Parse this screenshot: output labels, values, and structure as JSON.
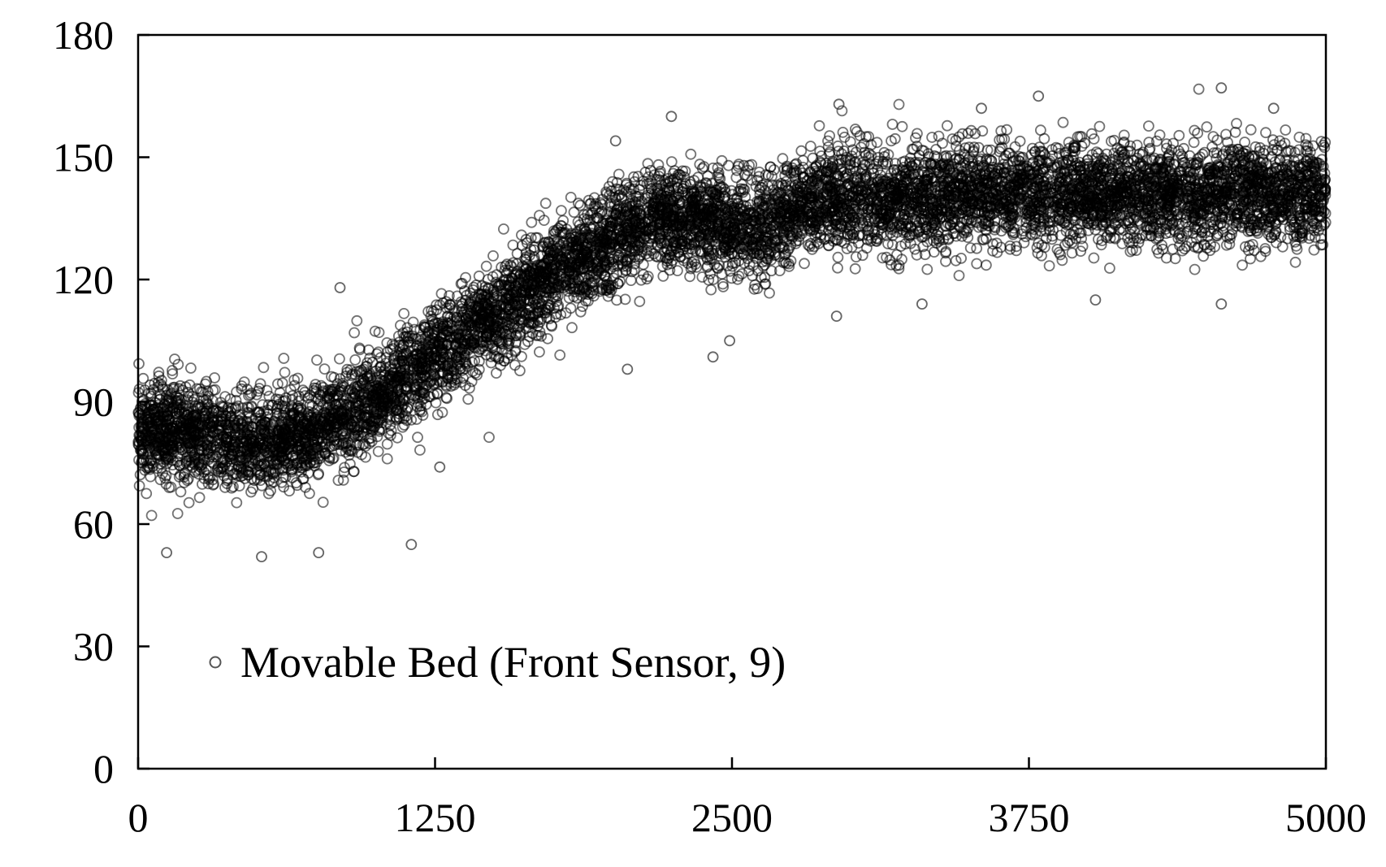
{
  "chart_data": {
    "type": "scatter",
    "title": "",
    "xlabel": "",
    "ylabel": "",
    "xlim": [
      0,
      5000
    ],
    "ylim": [
      0,
      180
    ],
    "x_ticks": [
      "0",
      "1250",
      "2500",
      "3750",
      "5000"
    ],
    "y_ticks": [
      "0",
      "30",
      "60",
      "90",
      "120",
      "150",
      "180"
    ],
    "grid": false,
    "legend_position": "bottom-left",
    "marker": "open-circle",
    "marker_color": "#000000",
    "series": [
      {
        "name": "Movable Bed (Front Sensor, 9)",
        "trend": [
          {
            "x": 0,
            "y": 83
          },
          {
            "x": 100,
            "y": 83
          },
          {
            "x": 250,
            "y": 82
          },
          {
            "x": 400,
            "y": 80
          },
          {
            "x": 550,
            "y": 80
          },
          {
            "x": 700,
            "y": 82
          },
          {
            "x": 850,
            "y": 86
          },
          {
            "x": 1000,
            "y": 91
          },
          {
            "x": 1150,
            "y": 97
          },
          {
            "x": 1300,
            "y": 103
          },
          {
            "x": 1450,
            "y": 109
          },
          {
            "x": 1600,
            "y": 115
          },
          {
            "x": 1750,
            "y": 121
          },
          {
            "x": 1900,
            "y": 126
          },
          {
            "x": 2050,
            "y": 131
          },
          {
            "x": 2200,
            "y": 135
          },
          {
            "x": 2350,
            "y": 135
          },
          {
            "x": 2500,
            "y": 133
          },
          {
            "x": 2650,
            "y": 133
          },
          {
            "x": 2800,
            "y": 138
          },
          {
            "x": 2950,
            "y": 140
          },
          {
            "x": 3100,
            "y": 140
          },
          {
            "x": 3500,
            "y": 141
          },
          {
            "x": 4000,
            "y": 141
          },
          {
            "x": 4500,
            "y": 141
          },
          {
            "x": 5000,
            "y": 141
          }
        ],
        "spread_sd": 6,
        "outliers": [
          {
            "x": 120,
            "y": 53
          },
          {
            "x": 520,
            "y": 52
          },
          {
            "x": 760,
            "y": 53
          },
          {
            "x": 1150,
            "y": 55
          },
          {
            "x": 1270,
            "y": 74
          },
          {
            "x": 2060,
            "y": 98
          },
          {
            "x": 2420,
            "y": 101
          },
          {
            "x": 2490,
            "y": 105
          },
          {
            "x": 2245,
            "y": 160
          },
          {
            "x": 2010,
            "y": 154
          },
          {
            "x": 2950,
            "y": 163
          },
          {
            "x": 3790,
            "y": 165
          },
          {
            "x": 4560,
            "y": 167
          },
          {
            "x": 4780,
            "y": 162
          },
          {
            "x": 2940,
            "y": 111
          },
          {
            "x": 3300,
            "y": 114
          },
          {
            "x": 4030,
            "y": 115
          },
          {
            "x": 4560,
            "y": 114
          },
          {
            "x": 850,
            "y": 118
          },
          {
            "x": 3550,
            "y": 162
          }
        ]
      }
    ]
  }
}
